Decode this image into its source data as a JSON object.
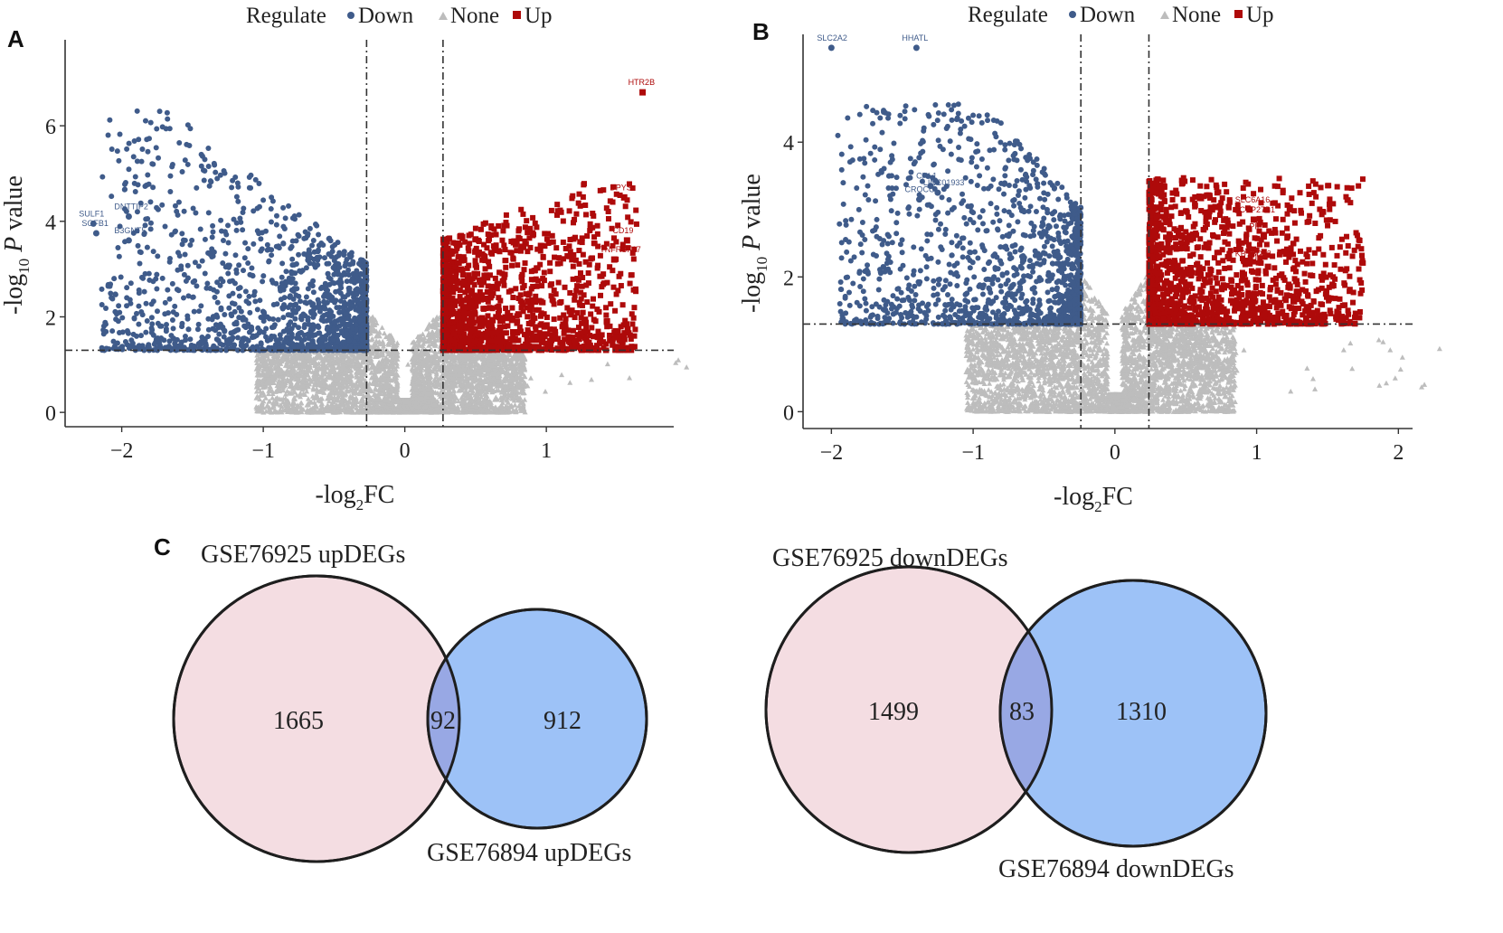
{
  "panels": {
    "A": "A",
    "B": "B",
    "C": "C"
  },
  "legend": {
    "title": "Regulate",
    "down": "Down",
    "none": "None",
    "up": "Up"
  },
  "colors": {
    "down": "#3f5b8a",
    "none": "#bdbdbd",
    "up": "#ae0a0a",
    "venn_left": "#f4dde2",
    "venn_right": "#9dc2f7",
    "venn_overlap": "#98a8e4"
  },
  "chart_data": [
    {
      "panel": "A",
      "type": "scatter",
      "title": "",
      "xlabel": "-log2FC",
      "ylabel": "-log10 P value",
      "xlim": [
        -2.4,
        1.9
      ],
      "ylim": [
        -0.3,
        7.8
      ],
      "xticks": [
        -2,
        -1,
        0,
        1
      ],
      "yticks": [
        0,
        2,
        4,
        6
      ],
      "vlines": [
        -0.27,
        0.27
      ],
      "hline": 1.3,
      "legend_position": "top",
      "series": [
        {
          "name": "Down",
          "n": 1600
        },
        {
          "name": "None",
          "n": 4000
        },
        {
          "name": "Up",
          "n": 1500
        }
      ],
      "labeled_genes": [
        {
          "label": "HTR2B",
          "x": 1.68,
          "y": 6.7,
          "group": "up"
        },
        {
          "label": "DPYS",
          "x": 1.55,
          "y": 4.5,
          "group": "up"
        },
        {
          "label": "CD19",
          "x": 1.57,
          "y": 3.6,
          "group": "up"
        },
        {
          "label": "TNFRSF17",
          "x": 1.48,
          "y": 3.2,
          "group": "up"
        },
        {
          "label": "DNTTIP2",
          "x": -1.95,
          "y": 4.1,
          "group": "down"
        },
        {
          "label": "SULF1",
          "x": -2.2,
          "y": 3.95,
          "group": "down"
        },
        {
          "label": "SOFB1",
          "x": -2.18,
          "y": 3.75,
          "group": "down"
        },
        {
          "label": "B3GNT5",
          "x": -1.95,
          "y": 3.6,
          "group": "down"
        }
      ]
    },
    {
      "panel": "B",
      "type": "scatter",
      "title": "",
      "xlabel": "-log2FC",
      "ylabel": "-log10 P value",
      "xlim": [
        -2.2,
        2.1
      ],
      "ylim": [
        -0.25,
        5.6
      ],
      "xticks": [
        -2,
        -1,
        0,
        1,
        2
      ],
      "yticks": [
        0,
        2,
        4
      ],
      "vlines": [
        -0.24,
        0.24
      ],
      "hline": 1.3,
      "legend_position": "top",
      "series": [
        {
          "name": "Down",
          "n": 1400
        },
        {
          "name": "None",
          "n": 4000
        },
        {
          "name": "Up",
          "n": 1400
        }
      ],
      "labeled_genes": [
        {
          "label": "SLC2A2",
          "x": -2.0,
          "y": 5.4,
          "group": "down"
        },
        {
          "label": "HHATL",
          "x": -1.4,
          "y": 5.4,
          "group": "down"
        },
        {
          "label": "CHL1",
          "x": -1.3,
          "y": 3.35,
          "group": "down"
        },
        {
          "label": "LINC01933",
          "x": -1.25,
          "y": 3.25,
          "group": "down"
        },
        {
          "label": "CROCC",
          "x": -1.38,
          "y": 3.15,
          "group": "down"
        },
        {
          "label": "SLC6A16",
          "x": 0.95,
          "y": 3.0,
          "group": "up"
        },
        {
          "label": "CYP27B1",
          "x": 0.98,
          "y": 2.85,
          "group": "up"
        },
        {
          "label": "PIP",
          "x": 1.05,
          "y": 2.6,
          "group": "up"
        },
        {
          "label": "KBTBD12",
          "x": 0.95,
          "y": 2.2,
          "group": "up"
        },
        {
          "label": "TG",
          "x": 1.08,
          "y": 2.15,
          "group": "up"
        }
      ]
    }
  ],
  "venn": [
    {
      "left_label": "GSE76925 upDEGs",
      "right_label": "GSE76894 upDEGs",
      "left_only": "1665",
      "overlap": "92",
      "right_only": "912"
    },
    {
      "left_label": "GSE76925 downDEGs",
      "right_label": "GSE76894 downDEGs",
      "left_only": "1499",
      "overlap": "83",
      "right_only": "1310"
    }
  ]
}
